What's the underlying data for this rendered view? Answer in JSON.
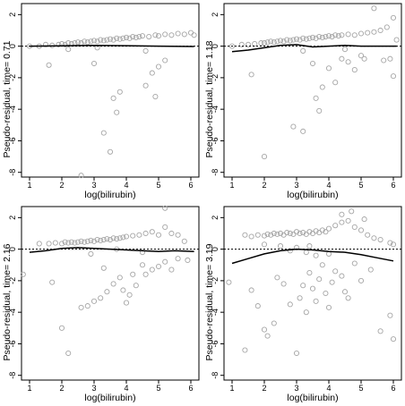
{
  "chart_data": [
    {
      "type": "scatter",
      "xlabel": "log(bilirubin)",
      "ylabel": "Pseudo-residual, time= 0.71",
      "xticks": [
        1,
        2,
        3,
        4,
        5,
        6
      ],
      "yticks": [
        -8,
        -6,
        -4,
        -2,
        0,
        2
      ],
      "xlim": [
        0.75,
        6.25
      ],
      "ylim": [
        -8.3,
        2.7
      ],
      "reference_line": 0,
      "points": [
        [
          1.6,
          -1.2
        ],
        [
          2.6,
          -8.2
        ],
        [
          3.0,
          -1.1
        ],
        [
          3.3,
          -5.5
        ],
        [
          3.5,
          -6.7
        ],
        [
          3.6,
          -3.3
        ],
        [
          3.7,
          -4.2
        ],
        [
          3.8,
          -2.9
        ],
        [
          4.6,
          -2.5
        ],
        [
          4.8,
          -1.7
        ],
        [
          4.9,
          -3.2
        ],
        [
          5.0,
          -1.3
        ],
        [
          5.2,
          -0.9
        ],
        [
          1.0,
          0.0
        ],
        [
          1.3,
          0.0
        ],
        [
          1.5,
          0.1
        ],
        [
          1.7,
          0.05
        ],
        [
          1.9,
          0.1
        ],
        [
          2.0,
          0.15
        ],
        [
          2.1,
          0.1
        ],
        [
          2.2,
          0.2
        ],
        [
          2.3,
          0.15
        ],
        [
          2.4,
          0.2
        ],
        [
          2.5,
          0.25
        ],
        [
          2.6,
          0.2
        ],
        [
          2.7,
          0.3
        ],
        [
          2.8,
          0.25
        ],
        [
          2.9,
          0.3
        ],
        [
          3.0,
          0.35
        ],
        [
          3.1,
          0.3
        ],
        [
          3.2,
          0.4
        ],
        [
          3.3,
          0.35
        ],
        [
          3.4,
          0.4
        ],
        [
          3.5,
          0.45
        ],
        [
          3.6,
          0.4
        ],
        [
          3.7,
          0.5
        ],
        [
          3.8,
          0.45
        ],
        [
          3.9,
          0.5
        ],
        [
          4.0,
          0.55
        ],
        [
          4.1,
          0.5
        ],
        [
          4.2,
          0.6
        ],
        [
          4.3,
          0.55
        ],
        [
          4.4,
          0.6
        ],
        [
          4.5,
          0.65
        ],
        [
          4.7,
          0.6
        ],
        [
          4.9,
          0.7
        ],
        [
          5.0,
          0.65
        ],
        [
          5.2,
          0.75
        ],
        [
          5.4,
          0.7
        ],
        [
          5.6,
          0.8
        ],
        [
          5.8,
          0.75
        ],
        [
          6.0,
          0.85
        ],
        [
          6.1,
          0.7
        ],
        [
          4.6,
          -0.3
        ],
        [
          2.2,
          -0.2
        ],
        [
          3.1,
          -0.1
        ]
      ],
      "smooth": [
        [
          1.0,
          0.0
        ],
        [
          2.0,
          0.02
        ],
        [
          3.0,
          0.05
        ],
        [
          4.0,
          0.03
        ],
        [
          5.0,
          0.0
        ],
        [
          6.1,
          -0.02
        ]
      ]
    },
    {
      "type": "scatter",
      "xlabel": "log(bilirubin)",
      "ylabel": "Pseudo-residual, time= 1.18",
      "xticks": [
        1,
        2,
        3,
        4,
        5,
        6
      ],
      "yticks": [
        -8,
        -6,
        -4,
        -2,
        0,
        2
      ],
      "xlim": [
        0.75,
        6.25
      ],
      "ylim": [
        -8.3,
        2.7
      ],
      "reference_line": 0,
      "points": [
        [
          1.6,
          -1.8
        ],
        [
          2.0,
          -7.0
        ],
        [
          2.9,
          -5.1
        ],
        [
          3.2,
          -5.4
        ],
        [
          3.5,
          -1.1
        ],
        [
          3.6,
          -3.3
        ],
        [
          3.7,
          -4.1
        ],
        [
          3.8,
          -2.6
        ],
        [
          4.0,
          -1.4
        ],
        [
          4.2,
          -2.3
        ],
        [
          4.4,
          -0.8
        ],
        [
          4.6,
          -1.0
        ],
        [
          4.8,
          -1.5
        ],
        [
          5.0,
          -0.6
        ],
        [
          5.1,
          -0.8
        ],
        [
          5.7,
          -0.9
        ],
        [
          5.9,
          -0.8
        ],
        [
          6.0,
          -1.9
        ],
        [
          1.0,
          0.0
        ],
        [
          1.3,
          0.1
        ],
        [
          1.5,
          0.1
        ],
        [
          1.7,
          0.15
        ],
        [
          1.9,
          0.2
        ],
        [
          2.0,
          0.2
        ],
        [
          2.1,
          0.25
        ],
        [
          2.2,
          0.3
        ],
        [
          2.3,
          0.25
        ],
        [
          2.4,
          0.3
        ],
        [
          2.5,
          0.35
        ],
        [
          2.6,
          0.3
        ],
        [
          2.7,
          0.4
        ],
        [
          2.8,
          0.35
        ],
        [
          2.9,
          0.4
        ],
        [
          3.0,
          0.45
        ],
        [
          3.1,
          0.4
        ],
        [
          3.2,
          0.5
        ],
        [
          3.3,
          0.45
        ],
        [
          3.4,
          0.5
        ],
        [
          3.5,
          0.55
        ],
        [
          3.6,
          0.5
        ],
        [
          3.7,
          0.6
        ],
        [
          3.8,
          0.55
        ],
        [
          3.9,
          0.6
        ],
        [
          4.0,
          0.65
        ],
        [
          4.1,
          0.6
        ],
        [
          4.2,
          0.7
        ],
        [
          4.3,
          0.65
        ],
        [
          4.4,
          0.7
        ],
        [
          4.6,
          0.75
        ],
        [
          4.8,
          0.7
        ],
        [
          5.0,
          0.8
        ],
        [
          5.2,
          0.85
        ],
        [
          5.4,
          0.9
        ],
        [
          5.6,
          1.0
        ],
        [
          5.8,
          1.2
        ],
        [
          6.0,
          1.8
        ],
        [
          5.4,
          2.4
        ],
        [
          6.1,
          0.4
        ],
        [
          3.2,
          -0.3
        ],
        [
          4.5,
          -0.2
        ]
      ],
      "smooth": [
        [
          1.0,
          -0.35
        ],
        [
          1.5,
          -0.25
        ],
        [
          2.0,
          -0.1
        ],
        [
          2.5,
          0.05
        ],
        [
          3.0,
          0.1
        ],
        [
          3.5,
          -0.05
        ],
        [
          4.0,
          0.0
        ],
        [
          4.5,
          0.05
        ],
        [
          5.0,
          0.0
        ],
        [
          6.1,
          0.0
        ]
      ]
    },
    {
      "type": "scatter",
      "xlabel": "log(bilirubin)",
      "ylabel": "Pseudo-residual, time= 2.16",
      "xticks": [
        1,
        2,
        3,
        4,
        5,
        6
      ],
      "yticks": [
        -8,
        -6,
        -4,
        -2,
        0,
        2
      ],
      "xlim": [
        0.75,
        6.25
      ],
      "ylim": [
        -8.3,
        2.7
      ],
      "reference_line": 0,
      "points": [
        [
          0.8,
          -1.6
        ],
        [
          1.7,
          -2.1
        ],
        [
          2.0,
          -5.0
        ],
        [
          2.2,
          -6.6
        ],
        [
          2.6,
          -3.7
        ],
        [
          2.8,
          -3.6
        ],
        [
          3.0,
          -3.3
        ],
        [
          3.2,
          -3.1
        ],
        [
          3.4,
          -2.7
        ],
        [
          3.6,
          -2.2
        ],
        [
          3.8,
          -1.8
        ],
        [
          3.9,
          -2.6
        ],
        [
          4.0,
          -3.4
        ],
        [
          4.1,
          -2.9
        ],
        [
          4.2,
          -1.6
        ],
        [
          4.3,
          -2.3
        ],
        [
          4.5,
          -1.0
        ],
        [
          4.6,
          -1.6
        ],
        [
          4.8,
          -1.3
        ],
        [
          5.0,
          -1.1
        ],
        [
          5.2,
          -0.8
        ],
        [
          5.4,
          -1.3
        ],
        [
          5.6,
          -0.6
        ],
        [
          5.9,
          -0.7
        ],
        [
          3.3,
          -1.2
        ],
        [
          1.3,
          0.35
        ],
        [
          1.6,
          0.35
        ],
        [
          1.8,
          0.4
        ],
        [
          2.0,
          0.35
        ],
        [
          2.1,
          0.45
        ],
        [
          2.2,
          0.4
        ],
        [
          2.3,
          0.45
        ],
        [
          2.4,
          0.4
        ],
        [
          2.5,
          0.45
        ],
        [
          2.6,
          0.5
        ],
        [
          2.7,
          0.45
        ],
        [
          2.8,
          0.5
        ],
        [
          2.9,
          0.55
        ],
        [
          3.0,
          0.5
        ],
        [
          3.1,
          0.6
        ],
        [
          3.2,
          0.55
        ],
        [
          3.3,
          0.6
        ],
        [
          3.4,
          0.65
        ],
        [
          3.5,
          0.6
        ],
        [
          3.6,
          0.7
        ],
        [
          3.7,
          0.65
        ],
        [
          3.8,
          0.7
        ],
        [
          3.9,
          0.75
        ],
        [
          4.0,
          0.8
        ],
        [
          4.2,
          0.85
        ],
        [
          4.4,
          0.9
        ],
        [
          4.6,
          1.0
        ],
        [
          4.8,
          1.1
        ],
        [
          5.0,
          0.9
        ],
        [
          5.2,
          1.4
        ],
        [
          5.4,
          1.0
        ],
        [
          5.6,
          0.9
        ],
        [
          5.8,
          0.5
        ],
        [
          5.2,
          2.6
        ],
        [
          4.5,
          -0.2
        ],
        [
          2.9,
          -0.3
        ],
        [
          3.7,
          0.0
        ]
      ],
      "smooth": [
        [
          1.0,
          -0.2
        ],
        [
          1.5,
          -0.1
        ],
        [
          2.0,
          0.05
        ],
        [
          2.5,
          0.1
        ],
        [
          3.0,
          0.05
        ],
        [
          3.5,
          0.0
        ],
        [
          4.0,
          -0.05
        ],
        [
          4.5,
          -0.1
        ],
        [
          5.0,
          -0.15
        ],
        [
          5.5,
          -0.1
        ],
        [
          6.1,
          -0.15
        ]
      ]
    },
    {
      "type": "scatter",
      "xlabel": "log(bilirubin)",
      "ylabel": "Pseudo-residual, time= 3.19",
      "xticks": [
        1,
        2,
        3,
        4,
        5,
        6
      ],
      "yticks": [
        -8,
        -6,
        -4,
        -2,
        0,
        2
      ],
      "xlim": [
        0.75,
        6.25
      ],
      "ylim": [
        -8.3,
        2.7
      ],
      "reference_line": 0,
      "points": [
        [
          0.9,
          -2.1
        ],
        [
          1.4,
          -6.4
        ],
        [
          1.6,
          -2.6
        ],
        [
          1.8,
          -3.6
        ],
        [
          2.0,
          -5.1
        ],
        [
          2.1,
          -5.5
        ],
        [
          2.3,
          -4.7
        ],
        [
          2.4,
          -1.8
        ],
        [
          2.6,
          -2.2
        ],
        [
          2.8,
          -3.5
        ],
        [
          3.0,
          -6.6
        ],
        [
          3.1,
          -3.1
        ],
        [
          3.2,
          -2.3
        ],
        [
          3.3,
          -4.0
        ],
        [
          3.4,
          -1.5
        ],
        [
          3.5,
          -2.5
        ],
        [
          3.6,
          -3.3
        ],
        [
          3.7,
          -1.9
        ],
        [
          3.8,
          -1.0
        ],
        [
          3.9,
          -2.8
        ],
        [
          4.0,
          -3.7
        ],
        [
          4.1,
          -2.1
        ],
        [
          4.2,
          -1.4
        ],
        [
          4.4,
          -1.7
        ],
        [
          4.6,
          -3.1
        ],
        [
          4.8,
          -0.9
        ],
        [
          5.0,
          -2.0
        ],
        [
          5.3,
          -1.3
        ],
        [
          5.6,
          -5.2
        ],
        [
          5.9,
          -4.2
        ],
        [
          6.0,
          -5.7
        ],
        [
          4.5,
          -2.7
        ],
        [
          1.4,
          0.9
        ],
        [
          1.6,
          0.8
        ],
        [
          1.8,
          0.9
        ],
        [
          2.0,
          0.85
        ],
        [
          2.1,
          0.95
        ],
        [
          2.2,
          0.9
        ],
        [
          2.3,
          1.0
        ],
        [
          2.4,
          0.95
        ],
        [
          2.5,
          1.0
        ],
        [
          2.6,
          0.9
        ],
        [
          2.7,
          1.05
        ],
        [
          2.8,
          1.0
        ],
        [
          2.9,
          0.95
        ],
        [
          3.0,
          1.1
        ],
        [
          3.1,
          1.0
        ],
        [
          3.2,
          1.05
        ],
        [
          3.3,
          0.95
        ],
        [
          3.4,
          1.1
        ],
        [
          3.5,
          1.0
        ],
        [
          3.6,
          1.15
        ],
        [
          3.7,
          1.05
        ],
        [
          3.8,
          1.2
        ],
        [
          3.9,
          1.1
        ],
        [
          4.0,
          1.3
        ],
        [
          4.2,
          1.5
        ],
        [
          4.4,
          1.7
        ],
        [
          4.6,
          1.8
        ],
        [
          4.8,
          1.4
        ],
        [
          5.0,
          1.2
        ],
        [
          5.2,
          0.9
        ],
        [
          5.4,
          0.7
        ],
        [
          5.6,
          0.6
        ],
        [
          5.9,
          0.4
        ],
        [
          6.0,
          0.3
        ],
        [
          2.0,
          0.3
        ],
        [
          2.5,
          0.2
        ],
        [
          3.0,
          0.1
        ],
        [
          3.3,
          -0.2
        ],
        [
          3.6,
          -0.4
        ],
        [
          4.0,
          -0.3
        ],
        [
          2.8,
          -0.1
        ],
        [
          3.4,
          0.2
        ],
        [
          4.4,
          2.2
        ],
        [
          4.7,
          2.4
        ],
        [
          5.1,
          1.9
        ]
      ],
      "smooth": [
        [
          1.0,
          -0.9
        ],
        [
          1.5,
          -0.6
        ],
        [
          2.0,
          -0.3
        ],
        [
          2.5,
          -0.1
        ],
        [
          3.0,
          0.0
        ],
        [
          3.5,
          -0.05
        ],
        [
          4.0,
          -0.15
        ],
        [
          4.5,
          -0.2
        ],
        [
          5.0,
          -0.35
        ],
        [
          5.5,
          -0.55
        ],
        [
          6.0,
          -0.75
        ]
      ]
    }
  ]
}
